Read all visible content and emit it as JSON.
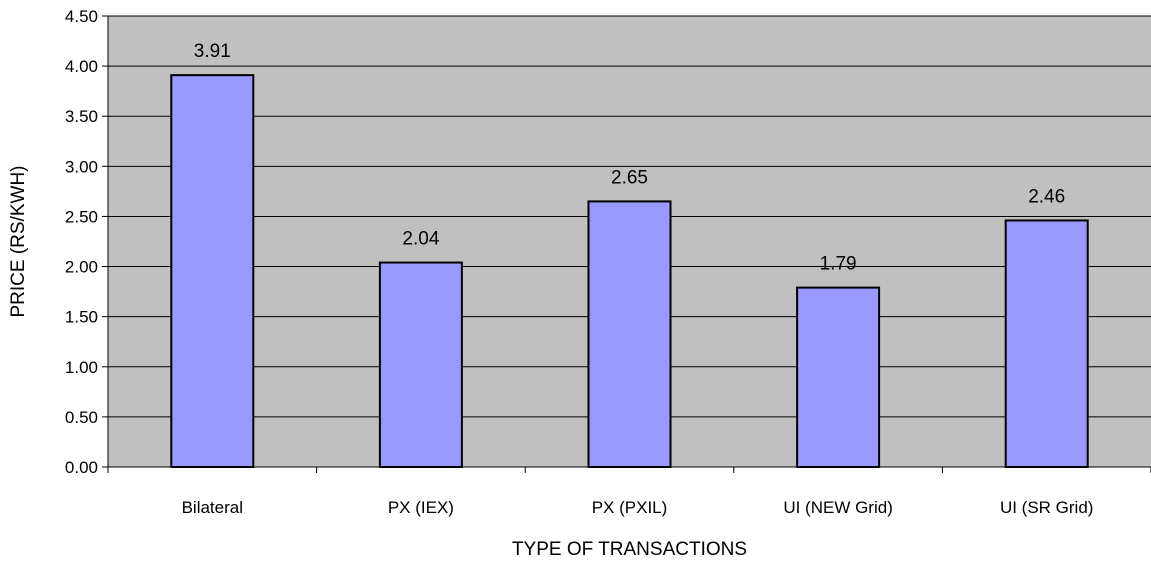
{
  "chart_data": {
    "type": "bar",
    "title": "",
    "xlabel": "TYPE OF TRANSACTIONS",
    "ylabel": "PRICE (RS/KWH)",
    "categories": [
      "Bilateral",
      "PX (IEX)",
      "PX (PXIL)",
      "UI (NEW Grid)",
      "UI (SR Grid)"
    ],
    "values": [
      3.91,
      2.04,
      2.65,
      1.79,
      2.46
    ],
    "data_labels": [
      "3.91",
      "2.04",
      "2.65",
      "1.79",
      "2.46"
    ],
    "ylim": [
      0,
      4.5
    ],
    "yticks": [
      "0.00",
      "0.50",
      "1.00",
      "1.50",
      "2.00",
      "2.50",
      "3.00",
      "3.50",
      "4.00",
      "4.50"
    ],
    "grid": true,
    "legend": "none",
    "colors": {
      "bar_fill": "#9999ff",
      "plot_background": "#c0c0c0",
      "gridline": "#000000",
      "bar_stroke": "#000000"
    }
  }
}
